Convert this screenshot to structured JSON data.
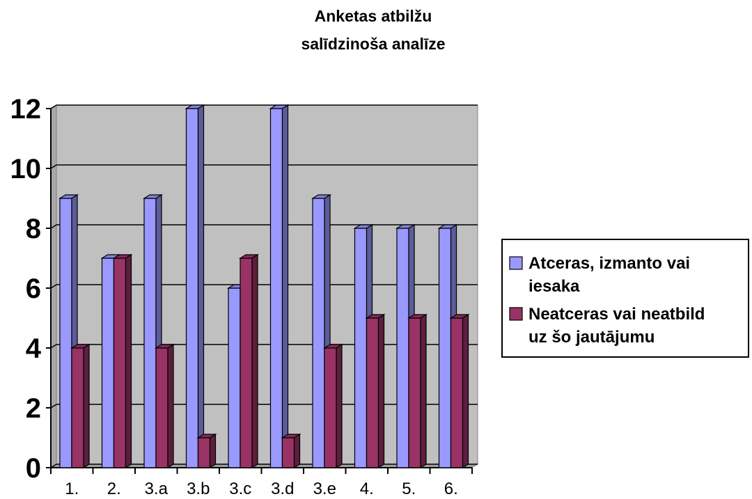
{
  "chart_data": {
    "type": "bar",
    "title_lines": [
      "Anketas atbilžu",
      "salīdzinoša analīze"
    ],
    "categories": [
      "1.",
      "2.",
      "3.a",
      "3.b",
      "3.c",
      "3.d",
      "3.e",
      "4.",
      "5.",
      "6."
    ],
    "series": [
      {
        "name_lines": [
          "Atceras, izmanto vai",
          "iesaka"
        ],
        "color": "#9999ff",
        "values": [
          9,
          7,
          9,
          12,
          6,
          12,
          9,
          8,
          8,
          8
        ]
      },
      {
        "name_lines": [
          "Neatceras vai neatbild",
          "uz šo jautājumu"
        ],
        "color": "#993366",
        "values": [
          4,
          7,
          4,
          1,
          7,
          1,
          4,
          5,
          5,
          5
        ]
      }
    ],
    "y_ticks": [
      "0",
      "2",
      "4",
      "6",
      "8",
      "10",
      "12"
    ],
    "ylim": [
      0,
      12
    ],
    "grid": true,
    "plot_background": "#c0c0c0",
    "legend_position": "right"
  }
}
